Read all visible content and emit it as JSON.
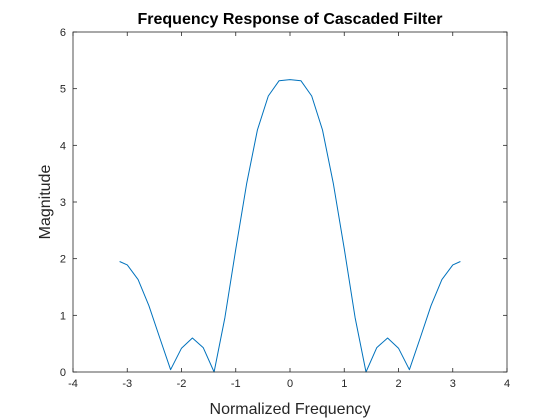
{
  "chart_data": {
    "type": "line",
    "title": "Frequency Response of Cascaded Filter",
    "xlabel": "Normalized Frequency",
    "ylabel": "Magnitude",
    "xlim": [
      -4,
      4
    ],
    "ylim": [
      0,
      6
    ],
    "xticks": [
      "-4",
      "-3",
      "-2",
      "-1",
      "0",
      "1",
      "2",
      "3",
      "4"
    ],
    "yticks": [
      "0",
      "1",
      "2",
      "3",
      "4",
      "5",
      "6"
    ],
    "grid": false,
    "legend": "none",
    "line_color": "#0072BD",
    "series": [
      {
        "x": [
          -3.1416,
          -3.0,
          -2.8,
          -2.6,
          -2.4,
          -2.2,
          -2.0,
          -1.8,
          -1.6,
          -1.4,
          -1.2,
          -1.0,
          -0.8,
          -0.6,
          -0.4,
          -0.2,
          0.0,
          0.2,
          0.4,
          0.6,
          0.8,
          1.0,
          1.2,
          1.4,
          1.6,
          1.8,
          2.0,
          2.2,
          2.4,
          2.6,
          2.8,
          3.0,
          3.1416
        ],
        "values": [
          1.95,
          1.89,
          1.63,
          1.17,
          0.6,
          0.04,
          0.42,
          0.6,
          0.43,
          0.0,
          0.96,
          2.17,
          3.32,
          4.27,
          4.87,
          5.14,
          5.16,
          5.14,
          4.87,
          4.27,
          3.32,
          2.17,
          0.96,
          0.0,
          0.43,
          0.6,
          0.42,
          0.04,
          0.6,
          1.17,
          1.63,
          1.89,
          1.95
        ]
      }
    ]
  }
}
